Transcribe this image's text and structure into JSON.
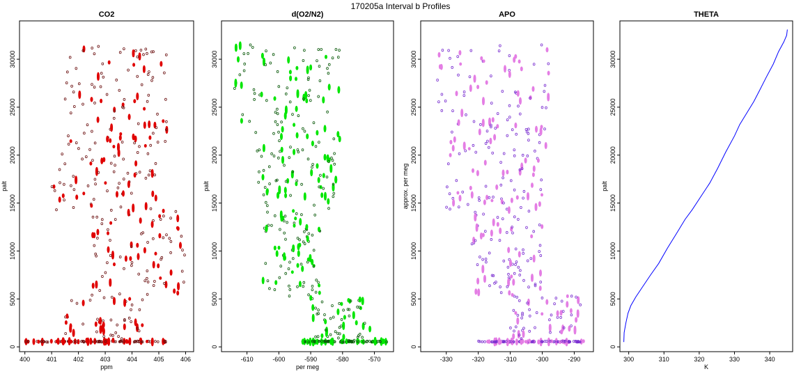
{
  "figure_title": "170205a   Interval b Profiles",
  "chart_data": [
    {
      "type": "scatter",
      "title": "CO2",
      "xlabel": "ppm",
      "ylabel": "palt",
      "xlim": [
        399.8,
        406.3
      ],
      "ylim": [
        -500,
        34000
      ],
      "xticks": [
        "400",
        "401",
        "402",
        "403",
        "404",
        "405",
        "406"
      ],
      "yticks": [
        "0",
        "5000",
        "10000",
        "15000",
        "20000",
        "25000",
        "30000"
      ],
      "color": "#e00000",
      "edge_color": "#6b1010",
      "bands": [
        {
          "y": [
            500,
            600
          ],
          "x": [
            400.0,
            405.3
          ],
          "count": 110
        },
        {
          "y": [
            600,
            5300
          ],
          "x": [
            401.5,
            404.5
          ],
          "count": 55
        },
        {
          "y": [
            5300,
            14200
          ],
          "x": [
            402.5,
            406.0
          ],
          "count": 90
        },
        {
          "y": [
            14200,
            20500
          ],
          "x": [
            401.0,
            405.0
          ],
          "count": 70
        },
        {
          "y": [
            20500,
            31500
          ],
          "x": [
            401.5,
            405.3
          ],
          "count": 110
        }
      ]
    },
    {
      "type": "scatter",
      "title": "d(O2/N2)",
      "xlabel": "per meg",
      "ylabel": "palt",
      "xlim": [
        -618,
        -564
      ],
      "ylim": [
        -500,
        34000
      ],
      "xticks": [
        "-610",
        "-600",
        "-590",
        "-580",
        "-570"
      ],
      "yticks": [
        "0",
        "5000",
        "10000",
        "15000",
        "20000",
        "25000",
        "30000"
      ],
      "color": "#00e600",
      "edge_color": "#0b5a0b",
      "bands": [
        {
          "y": [
            500,
            600
          ],
          "x": [
            -593,
            -566
          ],
          "count": 110
        },
        {
          "y": [
            600,
            5300
          ],
          "x": [
            -590,
            -571
          ],
          "count": 60
        },
        {
          "y": [
            5300,
            14200
          ],
          "x": [
            -605,
            -587
          ],
          "count": 90
        },
        {
          "y": [
            14200,
            20500
          ],
          "x": [
            -607,
            -582
          ],
          "count": 70
        },
        {
          "y": [
            20500,
            31500
          ],
          "x": [
            -614,
            -580
          ],
          "count": 110
        }
      ]
    },
    {
      "type": "scatter",
      "title": "APO",
      "xlabel": "",
      "ylabel": "approx. per meg",
      "xlim": [
        -338,
        -284
      ],
      "ylim": [
        -500,
        34000
      ],
      "xticks": [
        "-330",
        "-320",
        "-310",
        "-300",
        "-290"
      ],
      "yticks": [
        "0",
        "5000",
        "10000",
        "15000",
        "20000",
        "25000",
        "30000"
      ],
      "color": "#e47ee4",
      "edge_color": "#7a2fd0",
      "bands": [
        {
          "y": [
            500,
            600
          ],
          "x": [
            -320,
            -287
          ],
          "count": 110
        },
        {
          "y": [
            600,
            5300
          ],
          "x": [
            -310,
            -288
          ],
          "count": 60
        },
        {
          "y": [
            5300,
            14200
          ],
          "x": [
            -322,
            -300
          ],
          "count": 90
        },
        {
          "y": [
            14200,
            20500
          ],
          "x": [
            -330,
            -300
          ],
          "count": 70
        },
        {
          "y": [
            20500,
            31500
          ],
          "x": [
            -333,
            -298
          ],
          "count": 110
        }
      ]
    },
    {
      "type": "line",
      "title": "THETA",
      "xlabel": "K",
      "ylabel": "palt",
      "xlim": [
        297.5,
        346.5
      ],
      "ylim": [
        -500,
        34000
      ],
      "xticks": [
        "300",
        "310",
        "320",
        "330",
        "340"
      ],
      "yticks": [
        "0",
        "5000",
        "10000",
        "15000",
        "20000",
        "25000",
        "30000"
      ],
      "color": "#0000ff",
      "x": [
        298.6,
        298.7,
        299.2,
        299.8,
        300.6,
        302.0,
        304.0,
        306.2,
        308.5,
        311.0,
        313.5,
        316.0,
        318.0,
        320.5,
        323.0,
        325.2,
        327.5,
        330.0,
        331.5,
        333.5,
        335.5,
        337.2,
        339.0,
        341.0,
        342.5,
        344.0,
        344.8,
        345.0
      ],
      "y": [
        500,
        1500,
        2500,
        3500,
        4300,
        5200,
        6300,
        7500,
        8700,
        10300,
        11800,
        13300,
        14300,
        15700,
        17100,
        18600,
        20300,
        22000,
        23200,
        24400,
        25600,
        26800,
        28100,
        29500,
        30800,
        31800,
        32500,
        33100
      ]
    }
  ]
}
